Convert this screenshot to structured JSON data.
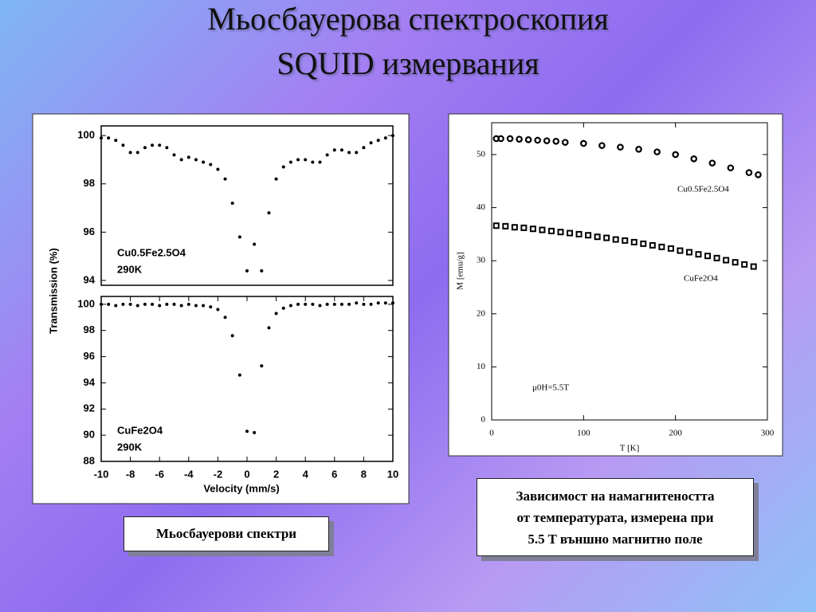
{
  "slide": {
    "title_lines": [
      "Мьосбауерова спектроскопия",
      "SQUID измервания"
    ],
    "caption_left": "Мьосбауерови спектри",
    "caption_right_lines": [
      "Зависимост на намагнитеността",
      "от температурата, измерена при",
      "5.5 T външно магнитно поле"
    ]
  },
  "chart_data": [
    {
      "type": "scatter",
      "ylabel": "Transmission (%)",
      "annotations": [
        "Cu0.5Fe2.5O4",
        "290K"
      ],
      "color": "#000000",
      "xlim": [
        -10,
        10
      ],
      "ylim": [
        93.8,
        100.4
      ],
      "yticks": [
        94,
        96,
        98,
        100
      ],
      "x": [
        -10,
        -9.5,
        -9,
        -8.5,
        -8,
        -7.5,
        -7,
        -6.5,
        -6,
        -5.5,
        -5,
        -4.5,
        -4,
        -3.5,
        -3,
        -2.5,
        -2,
        -1.5,
        -1,
        -0.5,
        0,
        0.5,
        1,
        1.5,
        2,
        2.5,
        3,
        3.5,
        4,
        4.5,
        5,
        5.5,
        6,
        6.5,
        7,
        7.5,
        8,
        8.5,
        9,
        9.5,
        10
      ],
      "values": [
        99.9,
        99.9,
        99.8,
        99.6,
        99.3,
        99.3,
        99.5,
        99.6,
        99.6,
        99.5,
        99.2,
        99.0,
        99.1,
        99.0,
        98.9,
        98.8,
        98.6,
        98.2,
        97.2,
        95.8,
        94.4,
        95.5,
        94.4,
        96.8,
        98.2,
        98.7,
        98.9,
        99.0,
        99.0,
        98.9,
        98.9,
        99.2,
        99.4,
        99.4,
        99.3,
        99.3,
        99.5,
        99.7,
        99.8,
        99.9,
        100.0
      ]
    },
    {
      "type": "scatter",
      "xlabel": "Velocity (mm/s)",
      "annotations": [
        "CuFe2O4",
        "290K"
      ],
      "color": "#000000",
      "xlim": [
        -10,
        10
      ],
      "xticks": [
        -10,
        -8,
        -6,
        -4,
        -2,
        0,
        2,
        4,
        6,
        8,
        10
      ],
      "ylim": [
        88,
        100.6
      ],
      "yticks": [
        88,
        90,
        92,
        94,
        96,
        98,
        100
      ],
      "x": [
        -10,
        -9.5,
        -9,
        -8.5,
        -8,
        -7.5,
        -7,
        -6.5,
        -6,
        -5.5,
        -5,
        -4.5,
        -4,
        -3.5,
        -3,
        -2.5,
        -2,
        -1.5,
        -1,
        -0.5,
        0,
        0.5,
        1,
        1.5,
        2,
        2.5,
        3,
        3.5,
        4,
        4.5,
        5,
        5.5,
        6,
        6.5,
        7,
        7.5,
        8,
        8.5,
        9,
        9.5,
        10
      ],
      "values": [
        100.0,
        100.0,
        99.9,
        100.0,
        100.0,
        99.9,
        100.0,
        100.0,
        99.9,
        100.0,
        100.0,
        99.9,
        100.0,
        99.9,
        99.9,
        99.8,
        99.6,
        99.0,
        97.6,
        94.6,
        90.3,
        90.2,
        95.3,
        98.2,
        99.3,
        99.7,
        99.9,
        100.0,
        100.0,
        100.0,
        99.9,
        100.0,
        100.0,
        100.0,
        100.0,
        100.1,
        100.0,
        100.0,
        100.1,
        100.1,
        100.1
      ]
    },
    {
      "type": "scatter",
      "xlabel": "T [K]",
      "ylabel": "M [emu/g]",
      "annotations": [
        "μ0H=5.5T"
      ],
      "xlim": [
        0,
        300
      ],
      "xticks": [
        0,
        100,
        200,
        300
      ],
      "ylim": [
        0,
        56
      ],
      "yticks": [
        0,
        10,
        20,
        30,
        40,
        50
      ],
      "series": [
        {
          "name": "Cu0.5Fe2.5O4",
          "color": "#000000",
          "marker": "circle",
          "x": [
            5,
            10,
            20,
            30,
            40,
            50,
            60,
            70,
            80,
            100,
            120,
            140,
            160,
            180,
            200,
            220,
            240,
            260,
            280,
            290
          ],
          "values": [
            53,
            53,
            53,
            52.9,
            52.8,
            52.7,
            52.6,
            52.5,
            52.3,
            52.1,
            51.7,
            51.4,
            51,
            50.5,
            50,
            49.2,
            48.4,
            47.5,
            46.6,
            46.2
          ]
        },
        {
          "name": "CuFe2O4",
          "color": "#000000",
          "marker": "square",
          "x": [
            5,
            15,
            25,
            35,
            45,
            55,
            65,
            75,
            85,
            95,
            105,
            115,
            125,
            135,
            145,
            155,
            165,
            175,
            185,
            195,
            205,
            215,
            225,
            235,
            245,
            255,
            265,
            275,
            285
          ],
          "values": [
            36.6,
            36.5,
            36.3,
            36.2,
            36.0,
            35.8,
            35.6,
            35.4,
            35.2,
            35.0,
            34.8,
            34.5,
            34.3,
            34.0,
            33.8,
            33.5,
            33.2,
            32.9,
            32.6,
            32.3,
            31.9,
            31.6,
            31.2,
            30.9,
            30.5,
            30.1,
            29.7,
            29.3,
            28.9
          ]
        }
      ]
    }
  ]
}
